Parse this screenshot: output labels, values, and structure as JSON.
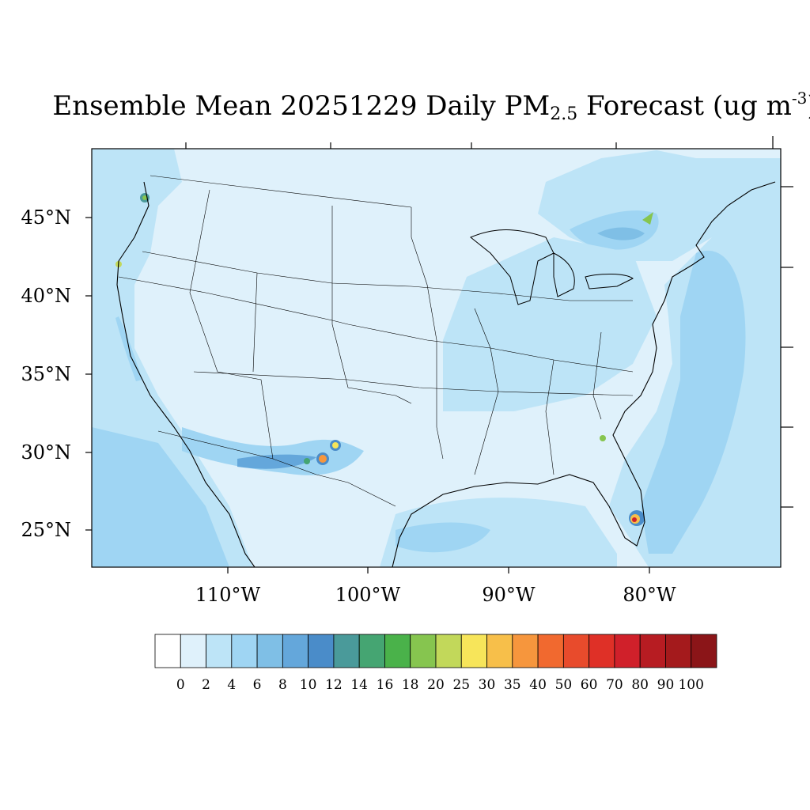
{
  "title": {
    "prefix": "Ensemble Mean 20251229 Daily PM",
    "subscript": "2.5",
    "middle": " Forecast (ug m",
    "superscript": "-3",
    "suffix": ")"
  },
  "map": {
    "region": "Continental United States",
    "lat_labels": [
      "45°N",
      "40°N",
      "35°N",
      "30°N",
      "25°N"
    ],
    "lon_labels": [
      "110°W",
      "100°W",
      "90°W",
      "80°W"
    ],
    "background_color": "#dff1fb"
  },
  "colorbar": {
    "labels": [
      "0",
      "2",
      "4",
      "6",
      "8",
      "10",
      "12",
      "14",
      "16",
      "18",
      "20",
      "25",
      "30",
      "35",
      "40",
      "50",
      "60",
      "70",
      "80",
      "90",
      "100"
    ],
    "colors": [
      "#ffffff",
      "#dff1fb",
      "#bde4f7",
      "#9fd5f3",
      "#7fbfe6",
      "#64a7db",
      "#4a8cc9",
      "#4a9a9a",
      "#45a572",
      "#4ab24a",
      "#86c54f",
      "#c2d85a",
      "#f7e55a",
      "#f7bf4a",
      "#f6963d",
      "#f1692f",
      "#e84b2c",
      "#df3027",
      "#d0202a",
      "#b71c22",
      "#a41a1c",
      "#8b1518"
    ]
  }
}
